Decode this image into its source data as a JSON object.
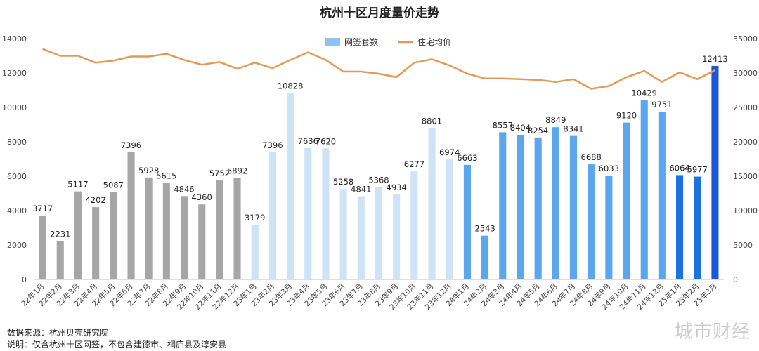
{
  "chart_data": {
    "type": "bar",
    "title": "杭州十区月度量价走势",
    "categories": [
      "22年1月",
      "22年2月",
      "22年3月",
      "22年4月",
      "22年5月",
      "22年6月",
      "22年7月",
      "22年8月",
      "22年9月",
      "22年10月",
      "22年11月",
      "22年12月",
      "23年1月",
      "23年2月",
      "23年3月",
      "23年4月",
      "23年5月",
      "23年6月",
      "23年7月",
      "23年8月",
      "23年9月",
      "23年10月",
      "23年11月",
      "23年12月",
      "24年1月",
      "24年2月",
      "24年3月",
      "24年4月",
      "24年5月",
      "24年6月",
      "24年7月",
      "24年8月",
      "24年9月",
      "24年10月",
      "24年11月",
      "24年12月",
      "25年1月",
      "25年2月",
      "25年3月"
    ],
    "series": [
      {
        "name": "网签套数",
        "type": "bar",
        "axis": "left",
        "values": [
          3717,
          2231,
          5117,
          4202,
          5087,
          7396,
          5928,
          5615,
          4846,
          4360,
          5752,
          5892,
          3179,
          7396,
          10828,
          7636,
          7620,
          5258,
          4841,
          5368,
          4934,
          6277,
          8801,
          6974,
          6663,
          2543,
          8557,
          8404,
          8254,
          8849,
          8341,
          6688,
          6033,
          9120,
          10429,
          9751,
          6064,
          5977,
          12413
        ],
        "labels": [
          "3717",
          "2231",
          "5117",
          "4202",
          "5087",
          "7396",
          "5928",
          "5615",
          "4846",
          "4360",
          "5752",
          "5892",
          "3179",
          "7396",
          "10828",
          "7636",
          "7620",
          "5258",
          "4841",
          "5368",
          "4934",
          "6277",
          "8801",
          "6974",
          "6663",
          "2543",
          "8557",
          "8404",
          "8254",
          "8849",
          "8341",
          "6688",
          "6033",
          "9120",
          "10429",
          "9751",
          "6064",
          "5977",
          "12413"
        ]
      },
      {
        "name": "住宅均价",
        "type": "line",
        "axis": "right",
        "values": [
          33500,
          32500,
          32500,
          31500,
          31800,
          32400,
          32400,
          32800,
          31900,
          31200,
          31600,
          30600,
          31500,
          30700,
          31900,
          33000,
          31900,
          30200,
          30200,
          29900,
          29400,
          31500,
          32000,
          31100,
          29900,
          29200,
          29200,
          29100,
          29000,
          28700,
          29100,
          27700,
          28100,
          29400,
          30300,
          28700,
          30100,
          29100,
          30400
        ]
      }
    ],
    "yaxis_left": {
      "range": [
        0,
        14000
      ],
      "ticks": [
        "0",
        "2000",
        "4000",
        "6000",
        "8000",
        "10000",
        "12000",
        "14000"
      ]
    },
    "yaxis_right": {
      "range": [
        0,
        35000
      ],
      "ticks": [
        "0",
        "5000",
        "10000",
        "15000",
        "20000",
        "25000",
        "30000",
        "35000"
      ]
    },
    "legend": {
      "position": "top-center",
      "items": [
        {
          "name": "网签套数",
          "shape": "bar",
          "color": "#8ec2f2"
        },
        {
          "name": "住宅均价",
          "shape": "line",
          "color": "#e39a57"
        }
      ]
    },
    "grid": false,
    "colors": {
      "bar_2022": "#a6a6a6",
      "bar_2023": "#cfe3f8",
      "bar_2024": "#5aa6ef",
      "bar_2025": "#1a73e0",
      "bar_2025_highlight": "#1c57d6",
      "line": "#e39a57"
    }
  },
  "footer": {
    "source": "数据来源：杭州贝壳研究院",
    "note": "说明：仅含杭州十区网签，不包含建德市、桐庐县及淳安县"
  },
  "watermark": "城市财经"
}
